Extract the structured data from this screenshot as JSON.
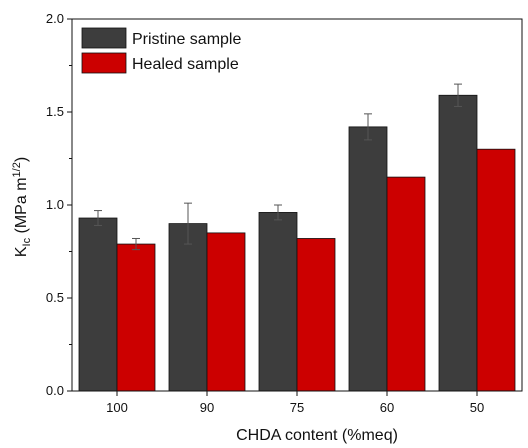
{
  "chart_data": {
    "type": "bar",
    "categories": [
      "100",
      "90",
      "75",
      "60",
      "50"
    ],
    "series": [
      {
        "name": "Pristine sample",
        "values": [
          0.93,
          0.9,
          0.96,
          1.42,
          1.59
        ],
        "errors": [
          0.04,
          0.11,
          0.04,
          0.07,
          0.06
        ],
        "color": "#3d3d3d"
      },
      {
        "name": "Healed sample",
        "values": [
          0.79,
          0.85,
          0.82,
          1.15,
          1.3
        ],
        "errors": [
          0.03,
          0.0,
          0.0,
          0.0,
          0.0
        ],
        "color": "#cc0000"
      }
    ],
    "xlabel": "CHDA content (%meq)",
    "ylabel": {
      "main": "K",
      "sub": "Ic",
      "unit_open": " (MPa m",
      "sup": "1/2",
      "unit_close": ")"
    },
    "ylim": [
      0.0,
      2.0
    ],
    "yticks": [
      "0.0",
      "0.5",
      "1.0",
      "1.5",
      "2.0"
    ],
    "yticks_values": [
      0.0,
      0.5,
      1.0,
      1.5,
      2.0
    ],
    "legend_position": "top-left",
    "grid": false
  }
}
